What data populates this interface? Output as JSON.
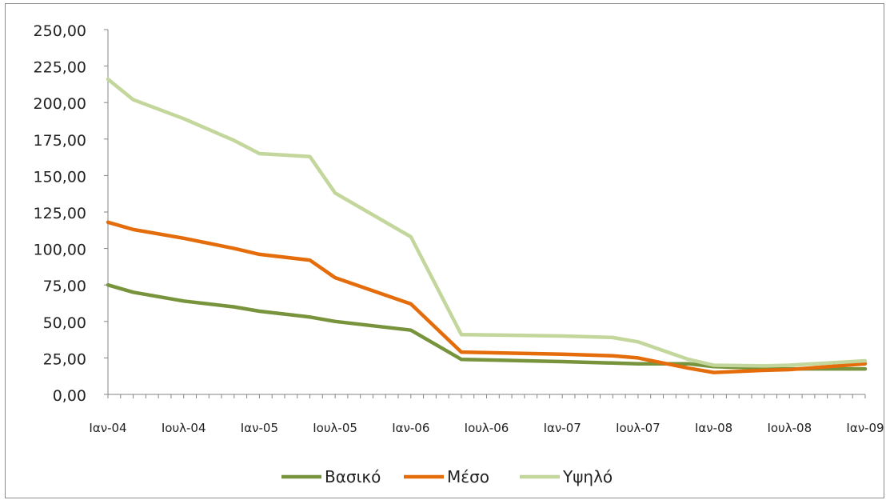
{
  "chart_data": {
    "type": "line",
    "title": "",
    "xlabel": "",
    "ylabel": "",
    "x_tick_labels": [
      "Ιαν-04",
      "Ιουλ-04",
      "Ιαν-05",
      "Ιουλ-05",
      "Ιαν-06",
      "Ιουλ-06",
      "Ιαν-07",
      "Ιουλ-07",
      "Ιαν-08",
      "Ιουλ-08",
      "Ιαν-09"
    ],
    "y_tick_labels": [
      "0,00",
      "25,00",
      "50,00",
      "75,00",
      "100,00",
      "125,00",
      "150,00",
      "175,00",
      "200,00",
      "225,00",
      "250,00"
    ],
    "x": [
      0,
      2,
      6,
      10,
      12,
      16,
      18,
      24,
      28,
      36,
      40,
      42,
      46,
      48,
      52,
      54,
      60
    ],
    "x_unit": "months from Ιαν-04",
    "ylim": [
      0,
      250
    ],
    "legend_position": "bottom",
    "grid": false,
    "series": [
      {
        "name": "Βασικό",
        "color": "#77933c",
        "values": [
          75,
          70,
          64,
          60,
          57,
          53,
          50,
          44,
          24,
          22.5,
          21.5,
          21,
          21,
          19,
          18,
          17.5,
          17.5
        ]
      },
      {
        "name": "Μέσο",
        "color": "#e46c0a",
        "values": [
          118,
          113,
          107,
          100,
          96,
          92,
          80,
          62,
          29,
          27.5,
          26.5,
          25,
          18,
          15,
          16.5,
          17,
          21
        ]
      },
      {
        "name": "Υψηλό",
        "color": "#c3d69b",
        "values": [
          216,
          202,
          189,
          174,
          165,
          163,
          138,
          108,
          41,
          40,
          39,
          36,
          24,
          20,
          19.5,
          20,
          23
        ]
      }
    ]
  }
}
